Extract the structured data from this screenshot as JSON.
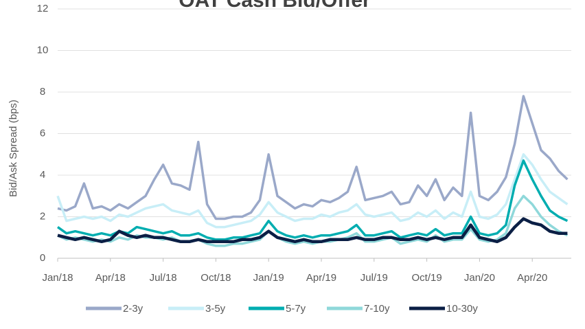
{
  "chart_data": {
    "type": "line",
    "title": "OAT Cash Bid/Offer",
    "y_label": "Bid/Ask Spread (bps)",
    "categories": [
      "Jan/18",
      null,
      null,
      null,
      null,
      null,
      "Apr/18",
      null,
      null,
      null,
      null,
      null,
      "Jul/18",
      null,
      null,
      null,
      null,
      null,
      "Oct/18",
      null,
      null,
      null,
      null,
      null,
      "Jan/19",
      null,
      null,
      null,
      null,
      null,
      "Apr/19",
      null,
      null,
      null,
      null,
      null,
      "Jul/19",
      null,
      null,
      null,
      null,
      null,
      "Oct/19",
      null,
      null,
      null,
      null,
      null,
      "Jan/20",
      null,
      null,
      null,
      null,
      null,
      "Apr/20",
      null,
      null,
      null,
      null
    ],
    "ylim": [
      0,
      12
    ],
    "yticks": [
      0,
      2,
      4,
      6,
      8,
      10,
      12
    ],
    "grid": true,
    "legend": "bottom",
    "series": [
      {
        "name": "2-3y",
        "color": "#9aa8c9",
        "values": [
          2.4,
          2.3,
          2.5,
          3.6,
          2.4,
          2.5,
          2.3,
          2.6,
          2.4,
          2.7,
          3.0,
          3.8,
          4.5,
          3.6,
          3.5,
          3.3,
          5.6,
          2.6,
          1.9,
          1.9,
          2.0,
          2.0,
          2.2,
          2.8,
          5.0,
          3.0,
          2.7,
          2.4,
          2.6,
          2.5,
          2.8,
          2.7,
          2.9,
          3.2,
          4.4,
          2.8,
          2.9,
          3.0,
          3.2,
          2.6,
          2.7,
          3.5,
          3.0,
          3.8,
          2.8,
          3.4,
          3.0,
          7.0,
          3.0,
          2.8,
          3.2,
          3.9,
          5.5,
          7.8,
          6.5,
          5.2,
          4.8,
          4.2,
          3.8
        ]
      },
      {
        "name": "3-5y",
        "color": "#c8eef7",
        "values": [
          3.0,
          1.8,
          1.9,
          2.0,
          1.9,
          2.0,
          1.8,
          2.1,
          2.0,
          2.2,
          2.4,
          2.5,
          2.6,
          2.3,
          2.2,
          2.1,
          2.3,
          1.7,
          1.5,
          1.5,
          1.6,
          1.7,
          1.8,
          2.1,
          2.7,
          2.2,
          2.0,
          1.8,
          1.9,
          1.9,
          2.1,
          2.0,
          2.2,
          2.3,
          2.6,
          2.1,
          2.0,
          2.1,
          2.2,
          1.8,
          1.9,
          2.2,
          2.0,
          2.3,
          1.9,
          2.2,
          2.0,
          3.2,
          2.0,
          1.9,
          2.1,
          2.6,
          3.8,
          5.0,
          4.5,
          3.8,
          3.2,
          2.9,
          2.6
        ]
      },
      {
        "name": "5-7y",
        "color": "#00adb0",
        "values": [
          1.5,
          1.2,
          1.3,
          1.2,
          1.1,
          1.2,
          1.1,
          1.3,
          1.2,
          1.5,
          1.4,
          1.3,
          1.2,
          1.3,
          1.1,
          1.1,
          1.2,
          1.0,
          0.9,
          0.9,
          1.0,
          1.0,
          1.1,
          1.2,
          1.8,
          1.3,
          1.1,
          1.0,
          1.1,
          1.0,
          1.1,
          1.1,
          1.2,
          1.3,
          1.6,
          1.1,
          1.1,
          1.2,
          1.3,
          1.0,
          1.1,
          1.2,
          1.1,
          1.4,
          1.1,
          1.2,
          1.2,
          2.0,
          1.2,
          1.1,
          1.2,
          1.6,
          3.5,
          4.7,
          3.8,
          3.0,
          2.3,
          2.0,
          1.8
        ]
      },
      {
        "name": "7-10y",
        "color": "#8fd8da",
        "values": [
          1.1,
          0.9,
          1.0,
          0.9,
          0.8,
          0.9,
          0.8,
          1.0,
          0.9,
          1.1,
          1.0,
          1.0,
          0.9,
          1.0,
          0.8,
          0.8,
          0.9,
          0.7,
          0.6,
          0.6,
          0.7,
          0.7,
          0.8,
          0.9,
          1.3,
          1.0,
          0.8,
          0.7,
          0.8,
          0.7,
          0.8,
          0.8,
          0.9,
          1.0,
          1.2,
          0.8,
          0.8,
          0.9,
          1.0,
          0.7,
          0.8,
          0.9,
          0.8,
          1.1,
          0.8,
          0.9,
          0.9,
          1.4,
          0.9,
          0.8,
          0.9,
          1.2,
          2.4,
          3.0,
          2.6,
          2.0,
          1.6,
          1.3,
          1.1
        ]
      },
      {
        "name": "10-30y",
        "color": "#0b1f45",
        "values": [
          1.1,
          1.0,
          0.9,
          1.0,
          0.9,
          0.8,
          0.9,
          1.3,
          1.1,
          1.0,
          1.1,
          1.0,
          1.0,
          0.9,
          0.8,
          0.8,
          0.9,
          0.8,
          0.8,
          0.8,
          0.8,
          0.9,
          0.9,
          1.0,
          1.3,
          1.0,
          0.9,
          0.8,
          0.9,
          0.8,
          0.8,
          0.9,
          0.9,
          0.9,
          1.0,
          0.9,
          0.9,
          1.0,
          1.0,
          0.9,
          0.9,
          1.0,
          0.9,
          1.0,
          0.9,
          1.0,
          1.0,
          1.6,
          1.0,
          0.9,
          0.8,
          1.0,
          1.5,
          1.9,
          1.7,
          1.6,
          1.3,
          1.2,
          1.2
        ]
      }
    ]
  }
}
